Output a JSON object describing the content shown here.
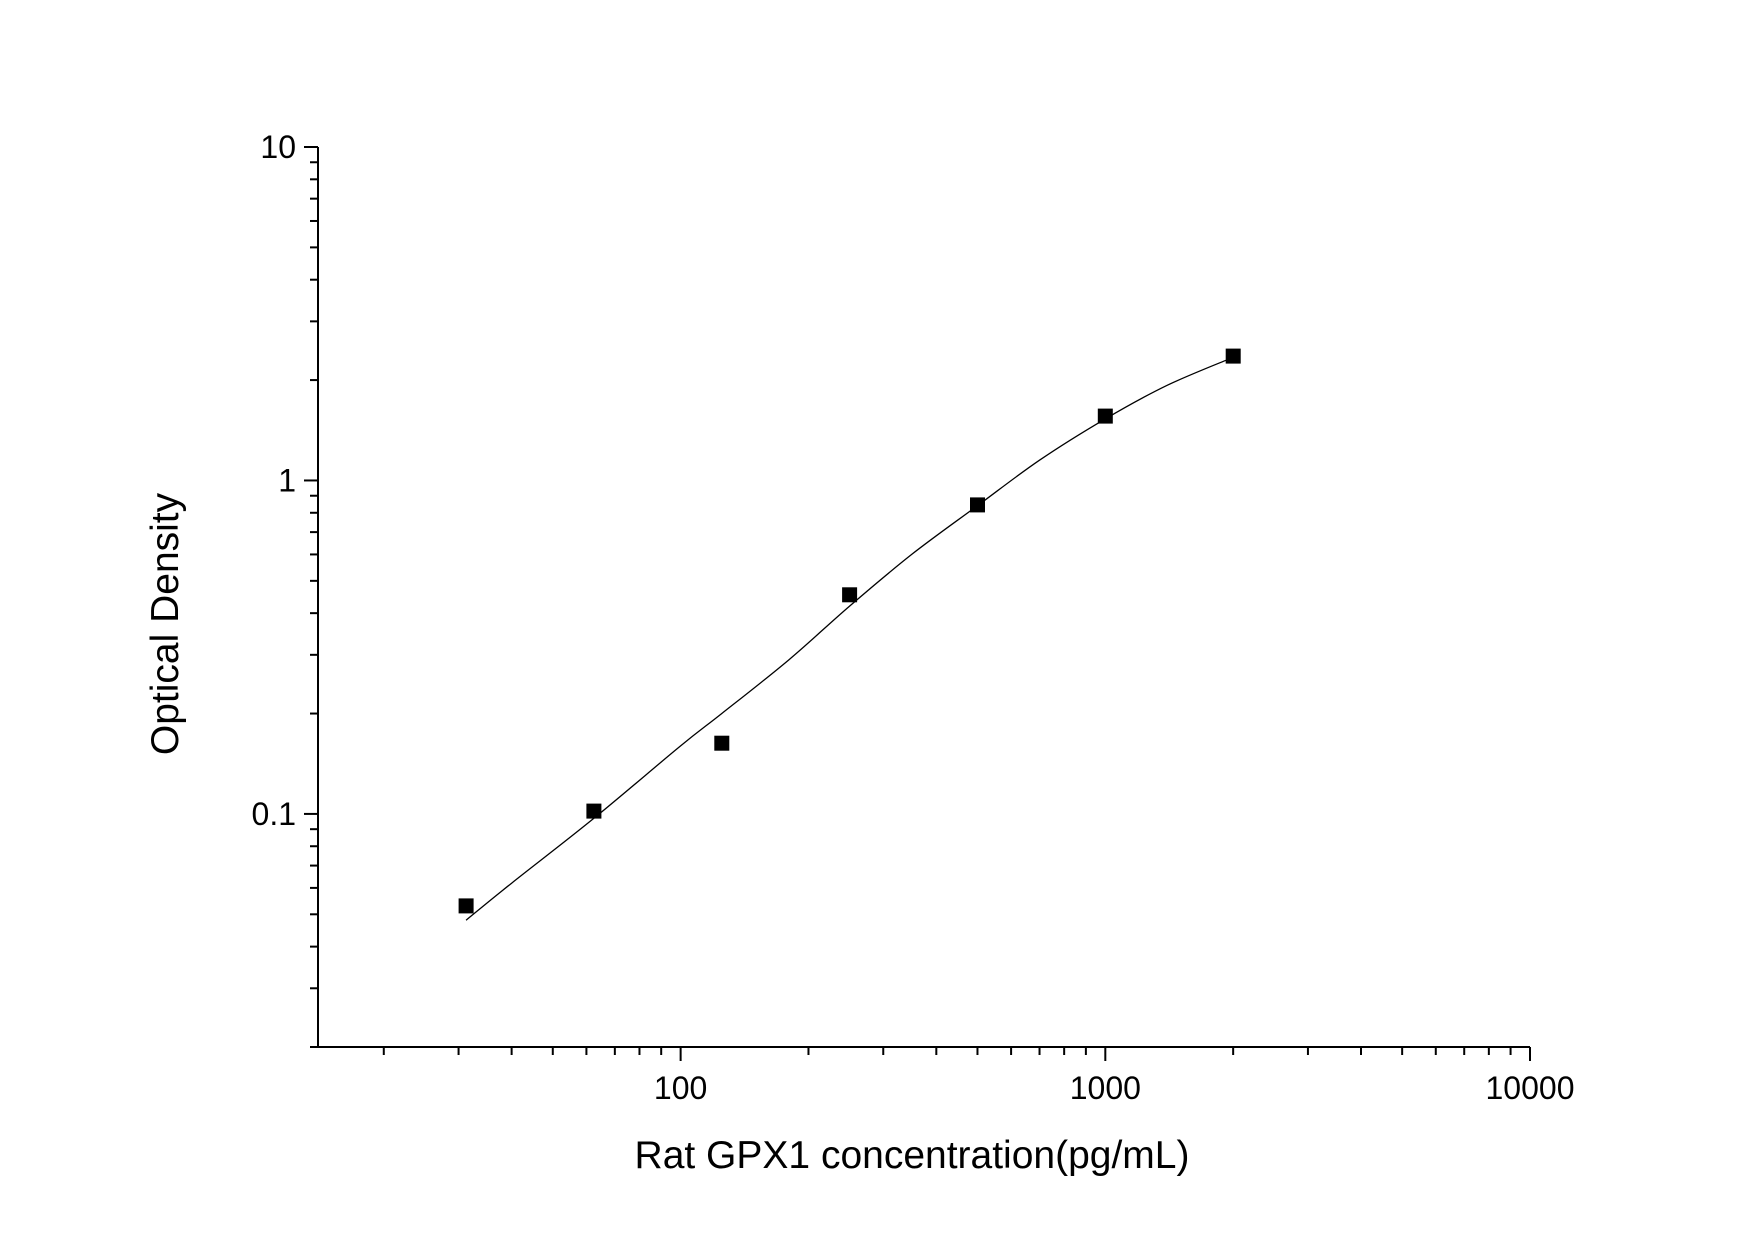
{
  "chart_data": {
    "type": "scatter",
    "title": "",
    "xlabel": "Rat GPX1 concentration(pg/mL)",
    "ylabel": "Optical Density",
    "x_scale": "log",
    "y_scale": "log",
    "xlim": [
      14,
      10000
    ],
    "ylim": [
      0.02,
      10
    ],
    "x_ticks": [
      {
        "value": 100,
        "label": "100"
      },
      {
        "value": 1000,
        "label": "1000"
      },
      {
        "value": 10000,
        "label": "10000"
      }
    ],
    "y_ticks": [
      {
        "value": 0.1,
        "label": "0.1"
      },
      {
        "value": 1,
        "label": "1"
      },
      {
        "value": 10,
        "label": "10"
      }
    ],
    "grid": false,
    "legend": "none",
    "series": [
      {
        "kind": "points",
        "marker": "square",
        "color": "#000000",
        "x": [
          31.25,
          62.5,
          125,
          250,
          500,
          1000,
          2000
        ],
        "y": [
          0.053,
          0.102,
          0.163,
          0.454,
          0.845,
          1.56,
          2.36
        ]
      },
      {
        "kind": "fit-curve",
        "color": "#000000",
        "x": [
          31.25,
          40,
          62.5,
          100,
          125,
          180,
          250,
          350,
          500,
          700,
          1000,
          1400,
          2000
        ],
        "y": [
          0.048,
          0.062,
          0.097,
          0.16,
          0.2,
          0.29,
          0.42,
          0.6,
          0.84,
          1.15,
          1.53,
          1.93,
          2.34
        ]
      }
    ]
  }
}
